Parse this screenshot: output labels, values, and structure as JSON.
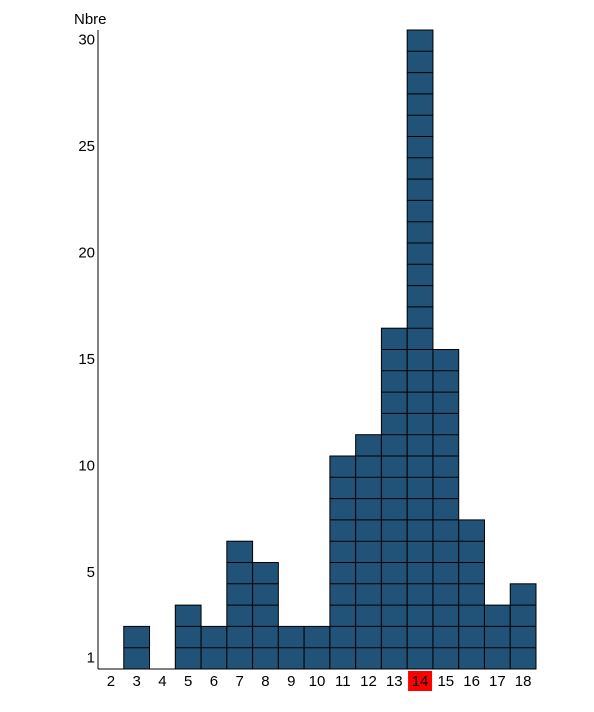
{
  "chart_data": {
    "type": "bar",
    "y_label": "Nbre",
    "categories": [
      "2",
      "3",
      "4",
      "5",
      "6",
      "7",
      "8",
      "9",
      "10",
      "11",
      "12",
      "13",
      "14",
      "15",
      "16",
      "17",
      "18"
    ],
    "values": [
      0,
      2,
      0,
      3,
      2,
      6,
      5,
      2,
      2,
      10,
      11,
      16,
      30,
      15,
      7,
      3,
      4
    ],
    "color": "#215277",
    "highlight_index": 12,
    "highlight_color": "#ff0000",
    "ylim": [
      0,
      30
    ],
    "yticks": [
      1,
      5,
      10,
      15,
      20,
      25,
      30
    ]
  }
}
